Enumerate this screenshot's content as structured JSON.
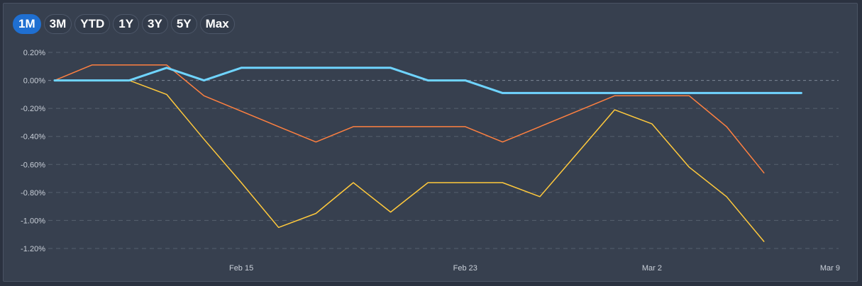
{
  "range_selector": {
    "buttons": [
      {
        "label": "1M",
        "active": true
      },
      {
        "label": "3M",
        "active": false
      },
      {
        "label": "YTD",
        "active": false
      },
      {
        "label": "1Y",
        "active": false
      },
      {
        "label": "3Y",
        "active": false
      },
      {
        "label": "5Y",
        "active": false
      },
      {
        "label": "Max",
        "active": false
      }
    ]
  },
  "chart_data": {
    "type": "line",
    "title": "",
    "xlabel": "",
    "ylabel": "",
    "grid": true,
    "ylim": [
      -1.2,
      0.2
    ],
    "yticks": [
      0.2,
      0.0,
      -0.2,
      -0.4,
      -0.6,
      -0.8,
      -1.0,
      -1.2
    ],
    "ytick_labels": [
      "0.20%",
      "0.00%",
      "-0.20%",
      "-0.40%",
      "-0.60%",
      "-0.80%",
      "-1.00%",
      "-1.20%"
    ],
    "x": [
      "Feb 8",
      "Feb 9",
      "Feb 10",
      "Feb 11",
      "Feb 14",
      "Feb 15",
      "Feb 16",
      "Feb 17",
      "Feb 18",
      "Feb 21",
      "Feb 22",
      "Feb 23",
      "Feb 24",
      "Feb 25",
      "Feb 28",
      "Mar 1",
      "Mar 2",
      "Mar 3",
      "Mar 4",
      "Mar 7",
      "Mar 8",
      "Mar 9"
    ],
    "xtick_labels": [
      "Feb 15",
      "Feb 23",
      "Mar 2",
      "Mar 9"
    ],
    "series": [
      {
        "color": "#ffc93c",
        "width": 1.5,
        "values": [
          0.0,
          0.0,
          0.0,
          -0.1,
          -0.42,
          -0.73,
          -1.05,
          -0.95,
          -0.73,
          -0.94,
          -0.73,
          -0.73,
          -0.73,
          -0.83,
          -0.52,
          -0.21,
          -0.31,
          -0.62,
          -0.83,
          -1.15,
          null,
          null
        ]
      },
      {
        "color": "#ff8040",
        "width": 1.5,
        "values": [
          0.0,
          0.11,
          0.11,
          0.11,
          -0.11,
          -0.22,
          -0.33,
          -0.44,
          -0.33,
          -0.33,
          -0.33,
          -0.33,
          -0.44,
          -0.33,
          -0.22,
          -0.11,
          -0.11,
          -0.11,
          -0.33,
          -0.66,
          null,
          null
        ]
      },
      {
        "color": "#6fd4ff",
        "width": 3,
        "values": [
          0.0,
          0.0,
          0.0,
          0.09,
          0.0,
          0.09,
          0.09,
          0.09,
          0.09,
          0.09,
          0.0,
          0.0,
          -0.09,
          -0.09,
          -0.09,
          -0.09,
          -0.09,
          -0.09,
          -0.09,
          -0.09,
          -0.09,
          null
        ]
      }
    ]
  },
  "colors": {
    "background": "#37404f",
    "grid": "#56606f",
    "active_button": "#1f6fd1"
  }
}
